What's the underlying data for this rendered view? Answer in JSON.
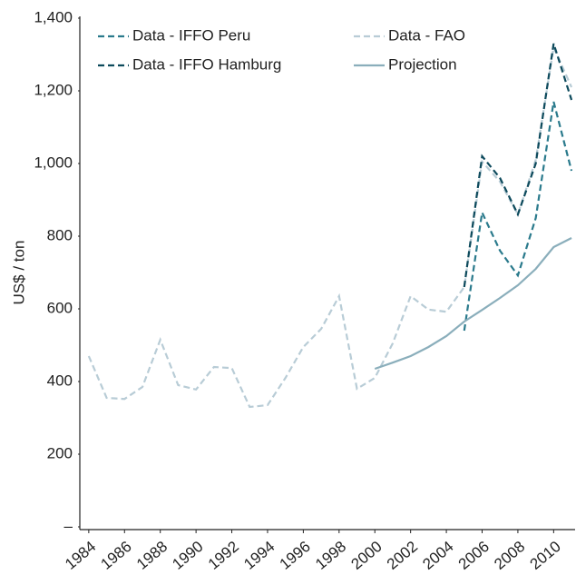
{
  "chart_data": {
    "type": "line",
    "y_label": "US$ / ton",
    "x": [
      1984,
      1985,
      1986,
      1987,
      1988,
      1989,
      1990,
      1991,
      1992,
      1993,
      1994,
      1995,
      1996,
      1997,
      1998,
      1999,
      2000,
      2001,
      2002,
      2003,
      2004,
      2005,
      2006,
      2007,
      2008,
      2009,
      2010,
      2011
    ],
    "series": [
      {
        "name": "Data - IFFO Peru",
        "color": "#2a7a8c",
        "dash": true,
        "values": [
          null,
          null,
          null,
          null,
          null,
          null,
          null,
          null,
          null,
          null,
          null,
          null,
          null,
          null,
          null,
          null,
          null,
          null,
          null,
          null,
          null,
          540,
          865,
          760,
          692,
          850,
          1170,
          980
        ]
      },
      {
        "name": "Data - FAO",
        "color": "#b8ccd6",
        "dash": true,
        "values": [
          470,
          355,
          352,
          385,
          515,
          390,
          378,
          440,
          437,
          330,
          335,
          410,
          495,
          545,
          635,
          380,
          410,
          505,
          635,
          598,
          592,
          660,
          1005,
          950,
          860,
          1010,
          1320,
          1210
        ]
      },
      {
        "name": "Data - IFFO Hamburg",
        "color": "#0d4a5c",
        "dash": true,
        "values": [
          null,
          null,
          null,
          null,
          null,
          null,
          null,
          null,
          null,
          null,
          null,
          null,
          null,
          null,
          null,
          null,
          null,
          null,
          null,
          null,
          null,
          660,
          1020,
          960,
          860,
          1000,
          1330,
          1175
        ]
      },
      {
        "name": "Projection",
        "color": "#8aaebb",
        "dash": false,
        "values": [
          null,
          null,
          null,
          null,
          null,
          null,
          null,
          null,
          null,
          null,
          null,
          null,
          null,
          null,
          null,
          null,
          435,
          452,
          470,
          495,
          525,
          565,
          597,
          630,
          665,
          710,
          770,
          795
        ]
      }
    ],
    "xlim": [
      1983.5,
      2011.2
    ],
    "xticks": [
      1984,
      1986,
      1988,
      1990,
      1992,
      1994,
      1996,
      1998,
      2000,
      2002,
      2004,
      2006,
      2008,
      2010
    ],
    "ylim": [
      0,
      1400
    ],
    "yticks": [
      {
        "value": 0,
        "label": "–"
      },
      200,
      400,
      600,
      800,
      {
        "value": 1000,
        "label": "1,000"
      },
      {
        "value": 1200,
        "label": "1,200"
      },
      {
        "value": 1400,
        "label": "1,400"
      }
    ]
  }
}
